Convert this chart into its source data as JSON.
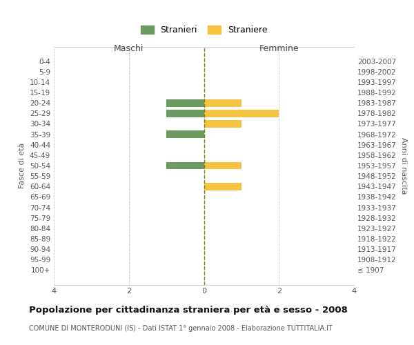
{
  "age_groups": [
    "0-4",
    "5-9",
    "10-14",
    "15-19",
    "20-24",
    "25-29",
    "30-34",
    "35-39",
    "40-44",
    "45-49",
    "50-54",
    "55-59",
    "60-64",
    "65-69",
    "70-74",
    "75-79",
    "80-84",
    "85-89",
    "90-94",
    "95-99",
    "100+"
  ],
  "birth_years": [
    "2003-2007",
    "1998-2002",
    "1993-1997",
    "1988-1992",
    "1983-1987",
    "1978-1982",
    "1973-1977",
    "1968-1972",
    "1963-1967",
    "1958-1962",
    "1953-1957",
    "1948-1952",
    "1943-1947",
    "1938-1942",
    "1933-1937",
    "1928-1932",
    "1923-1927",
    "1918-1922",
    "1913-1917",
    "1908-1912",
    "≤ 1907"
  ],
  "males": [
    0,
    0,
    0,
    0,
    -1,
    -1,
    0,
    -1,
    0,
    0,
    -1,
    0,
    0,
    0,
    0,
    0,
    0,
    0,
    0,
    0,
    0
  ],
  "females": [
    0,
    0,
    0,
    0,
    1,
    2,
    1,
    0,
    0,
    0,
    1,
    0,
    1,
    0,
    0,
    0,
    0,
    0,
    0,
    0,
    0
  ],
  "male_color": "#6b9a5e",
  "female_color": "#f5c242",
  "bar_edge_color": "none",
  "background_color": "#ffffff",
  "grid_color": "#cccccc",
  "title": "Popolazione per cittadinanza straniera per età e sesso - 2008",
  "subtitle": "COMUNE DI MONTERODUNI (IS) - Dati ISTAT 1° gennaio 2008 - Elaborazione TUTTITALIA.IT",
  "xlabel_left": "Maschi",
  "xlabel_right": "Femmine",
  "ylabel_left": "Fasce di età",
  "ylabel_right": "Anni di nascita",
  "legend_male": "Stranieri",
  "legend_female": "Straniere",
  "xlim": [
    -4,
    4
  ],
  "xticks": [
    -4,
    -2,
    0,
    2,
    4
  ],
  "xticklabels": [
    "4",
    "2",
    "0",
    "2",
    "4"
  ]
}
